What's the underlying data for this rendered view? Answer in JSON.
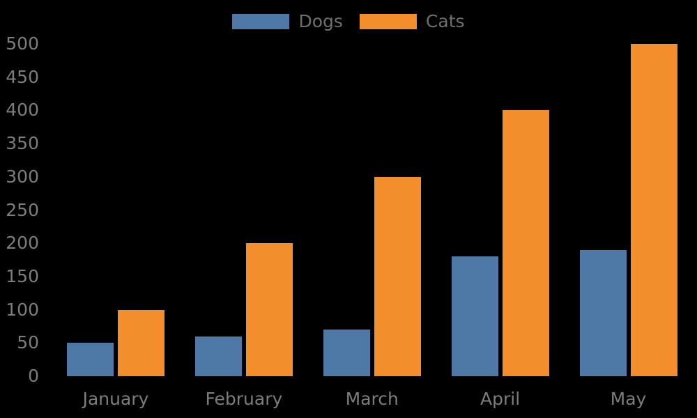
{
  "chart_data": {
    "type": "bar",
    "title": "",
    "xlabel": "",
    "ylabel": "",
    "categories": [
      "January",
      "February",
      "March",
      "April",
      "May"
    ],
    "series": [
      {
        "name": "Dogs",
        "color": "#4e79a7",
        "values": [
          50,
          60,
          70,
          180,
          190
        ]
      },
      {
        "name": "Cats",
        "color": "#f28e2b",
        "values": [
          100,
          200,
          300,
          400,
          500
        ]
      }
    ],
    "ylim": [
      0,
      500
    ],
    "yticks": [
      0,
      50,
      100,
      150,
      200,
      250,
      300,
      350,
      400,
      450,
      500
    ],
    "grid": false,
    "legend_position": "top-center",
    "colors": {
      "background": "#000000",
      "tick_label": "#7d7d7d",
      "legend_label": "#6f6f6f"
    }
  }
}
